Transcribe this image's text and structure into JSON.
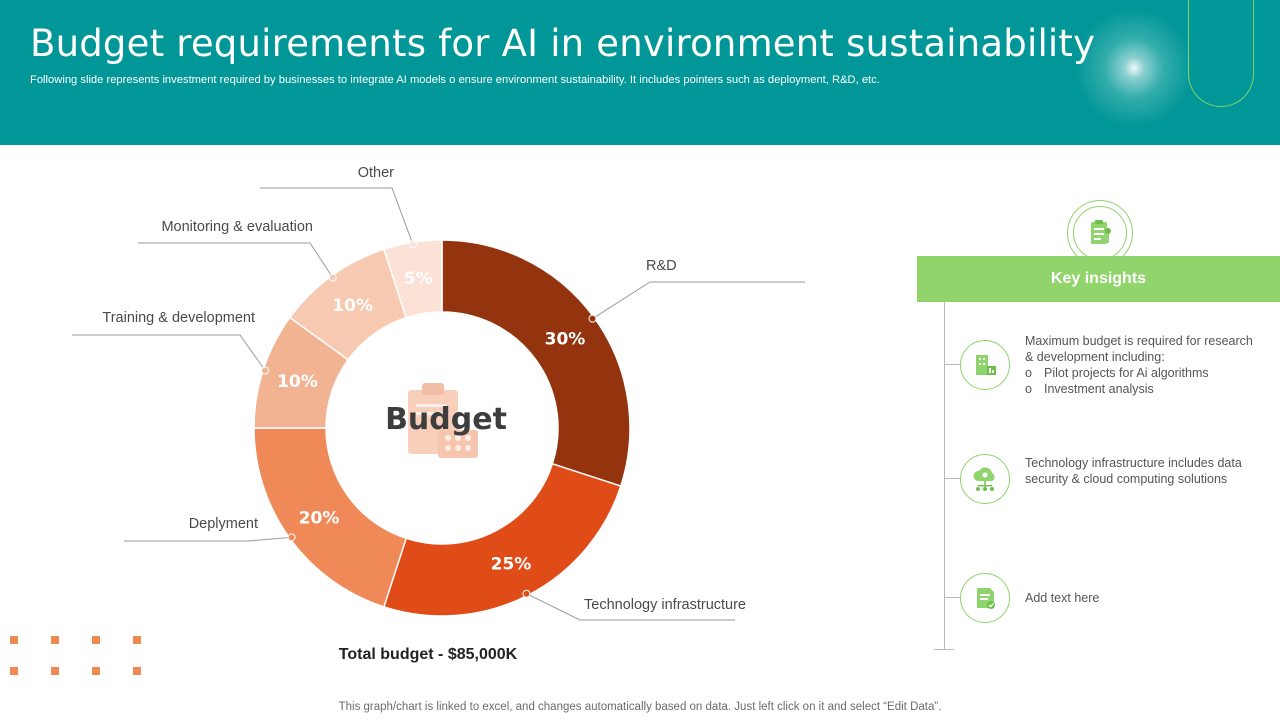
{
  "header": {
    "title": "Budget requirements for AI in environment sustainability",
    "subtitle": "Following slide represents investment required by businesses to integrate AI models o ensure environment sustainability. It includes pointers such as deployment, R&D, etc."
  },
  "chart_data": {
    "type": "pie",
    "subtype": "donut",
    "center_label": "Budget",
    "slices": [
      {
        "label": "R&D",
        "value": 30,
        "value_label": "30%",
        "color": "#93340f"
      },
      {
        "label": "Technology infrastructure",
        "value": 25,
        "value_label": "25%",
        "color": "#df4c18"
      },
      {
        "label": "Deplyment",
        "value": 20,
        "value_label": "20%",
        "color": "#ef8a58"
      },
      {
        "label": "Training & development",
        "value": 10,
        "value_label": "10%",
        "color": "#f2b392"
      },
      {
        "label": "Monitoring & evaluation",
        "value": 10,
        "value_label": "10%",
        "color": "#f7c9b0"
      },
      {
        "label": "Other",
        "value": 5,
        "value_label": "5%",
        "color": "#fbe1d6"
      }
    ],
    "total_label": "Total budget - $85,000K"
  },
  "footnote": "This graph/chart is linked to excel, and changes automatically based on data. Just left click on it and select “Edit Data”.",
  "insights": {
    "header": "Key insights",
    "items": [
      {
        "icon": "building-chart-icon",
        "text": "Maximum budget is required for research & development including:",
        "bullets": [
          "Pilot projects for Ai algorithms",
          "Investment analysis"
        ]
      },
      {
        "icon": "cloud-network-icon",
        "text": "Technology infrastructure includes data security & cloud computing solutions",
        "bullets": []
      },
      {
        "icon": "document-check-icon",
        "text": "Add text here",
        "bullets": []
      }
    ]
  },
  "colors": {
    "header_bg": "#019697",
    "accent_green": "#92d46c",
    "accent_orange": "#ef8a52"
  }
}
